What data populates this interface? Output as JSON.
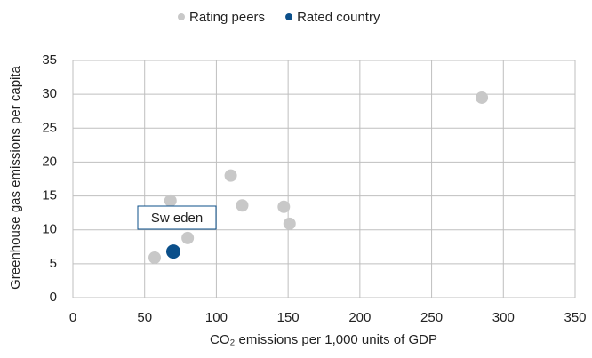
{
  "chart_data": {
    "type": "scatter",
    "xlabel": "CO₂ emissions per 1,000 units of GDP",
    "ylabel": "Greenhouse gas emissions per capita",
    "xlim": [
      0,
      350
    ],
    "xticks": [
      0,
      50,
      100,
      150,
      200,
      250,
      300,
      350
    ],
    "ylim": [
      0,
      35
    ],
    "yticks": [
      0,
      5,
      10,
      15,
      20,
      25,
      30,
      35
    ],
    "grid": true,
    "legend": "top",
    "annotation": "Sw eden",
    "series": [
      {
        "name": "Rating peers",
        "color": "#c8c8c8",
        "x": [
          57,
          68,
          80,
          110,
          118,
          147,
          151,
          285
        ],
        "values": [
          5.9,
          14.3,
          8.8,
          18,
          13.6,
          13.4,
          10.9,
          29.5
        ]
      },
      {
        "name": "Rated country",
        "color": "#0b4f8a",
        "x": [
          70
        ],
        "values": [
          6.8
        ]
      }
    ]
  }
}
